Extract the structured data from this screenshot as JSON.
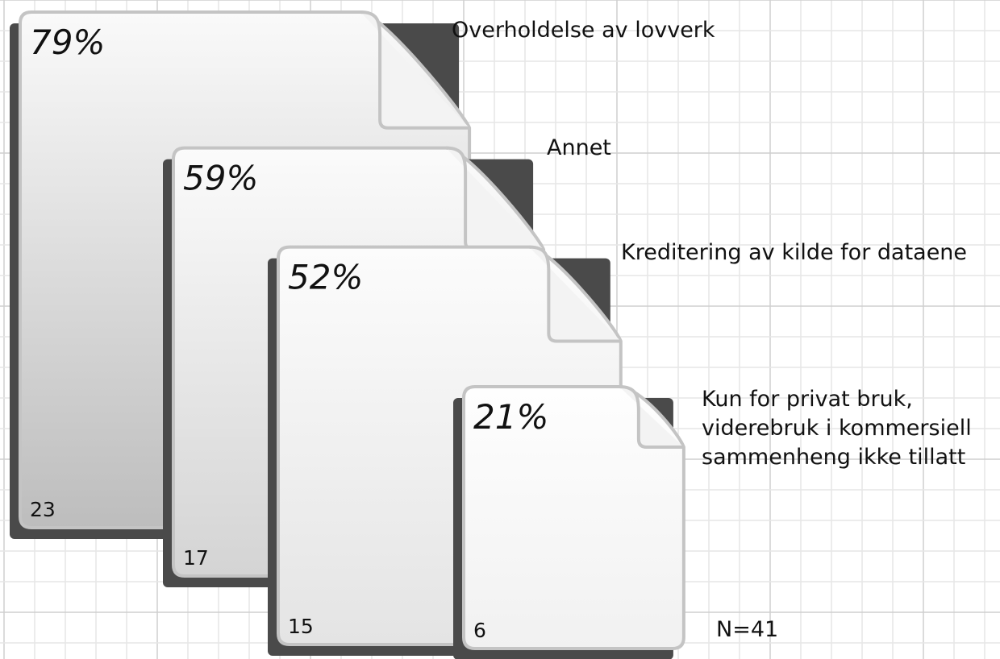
{
  "chart_data": {
    "type": "document-sizes",
    "categories": [
      "Overholdelse av lovverk",
      "Annet",
      "Kreditering av kilde for dataene",
      "Kun for privat bruk,\nviderebruk i kommersiell\nsammenheng ikke tillatt"
    ],
    "values": [
      79,
      59,
      52,
      21
    ],
    "value_labels": [
      "79%",
      "59%",
      "52%",
      "21%"
    ],
    "counts": [
      23,
      17,
      15,
      6
    ],
    "note": "N=41"
  }
}
